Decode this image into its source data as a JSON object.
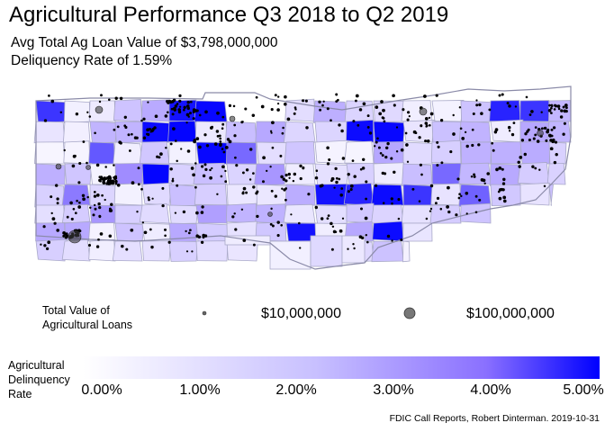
{
  "title": "Agricultural Performance Q3 2018 to Q2 2019",
  "subtitle_line1": "Avg Total Ag Loan Value of $3,798,000,000",
  "subtitle_line2": "Deliquency Rate of 1.59%",
  "size_legend": {
    "label_line1": "Total Value of",
    "label_line2": "Agricultural Loans",
    "small_value": "$10,000,000",
    "large_value": "$100,000,000"
  },
  "color_legend": {
    "title_line1": "Agricultural",
    "title_line2": "Delinquency",
    "title_line3": "Rate",
    "ticks": [
      "0.00%",
      "1.00%",
      "2.00%",
      "3.00%",
      "4.00%",
      "5.00%"
    ],
    "min_value": 0,
    "max_value": 5,
    "low_color": "#ffffff",
    "high_color": "#0000ff"
  },
  "caption": "FDIC Call Reports, Robert Dinterman. 2019-10-31",
  "colors": {
    "county_border": "#a9a9c8",
    "state_outline": "#8a8aa8",
    "bank_point": "#000000"
  }
}
